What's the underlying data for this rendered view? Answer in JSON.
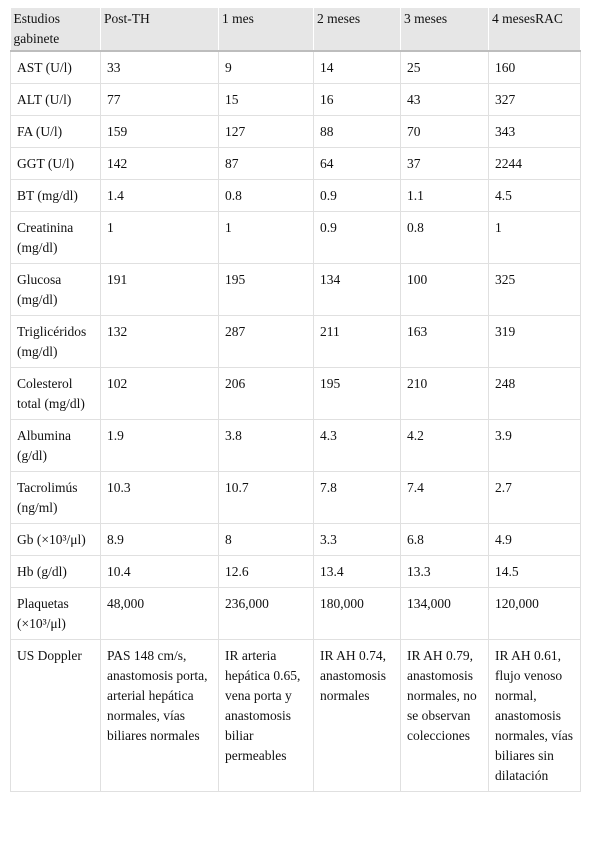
{
  "table": {
    "header": [
      "Estudios gabinete",
      "Post-TH",
      "1 mes",
      "2 meses",
      "3 meses",
      "4 mesesRAC"
    ],
    "rows": [
      [
        "AST (U/l)",
        "33",
        "9",
        "14",
        "25",
        "160"
      ],
      [
        "ALT (U/l)",
        "77",
        "15",
        "16",
        "43",
        "327"
      ],
      [
        "FA (U/l)",
        "159",
        "127",
        "88",
        "70",
        "343"
      ],
      [
        "GGT (U/l)",
        "142",
        "87",
        "64",
        "37",
        "2244"
      ],
      [
        "BT (mg/dl)",
        "1.4",
        "0.8",
        "0.9",
        "1.1",
        "4.5"
      ],
      [
        "Creatinina (mg/dl)",
        "1",
        "1",
        "0.9",
        "0.8",
        "1"
      ],
      [
        "Glucosa (mg/dl)",
        "191",
        "195",
        "134",
        "100",
        "325"
      ],
      [
        "Triglicéridos (mg/dl)",
        "132",
        "287",
        "211",
        "163",
        "319"
      ],
      [
        "Colesterol total (mg/dl)",
        "102",
        "206",
        "195",
        "210",
        "248"
      ],
      [
        "Albumina (g/dl)",
        "1.9",
        "3.8",
        "4.3",
        "4.2",
        "3.9"
      ],
      [
        "Tacrolimús (ng/ml)",
        "10.3",
        "10.7",
        "7.8",
        "7.4",
        "2.7"
      ],
      [
        "Gb (×10³/μl)",
        "8.9",
        "8",
        "3.3",
        "6.8",
        "4.9"
      ],
      [
        "Hb (g/dl)",
        "10.4",
        "12.6",
        "13.4",
        "13.3",
        "14.5"
      ],
      [
        "Plaquetas (×10³/μl)",
        "48,000",
        "236,000",
        "180,000",
        "134,000",
        "120,000"
      ],
      [
        "US Doppler",
        "PAS 148 cm/s, anastomosis porta, arterial hepática normales, vías biliares normales",
        "IR arteria hepática 0.65, vena porta y anastomosis biliar permeables",
        "IR AH 0.74, anastomosis normales",
        "IR AH 0.79, anastomosis normales, no se observan colecciones",
        "IR AH 0.61, flujo venoso normal, anastomosis normales, vías biliares sin dilatación"
      ]
    ]
  }
}
